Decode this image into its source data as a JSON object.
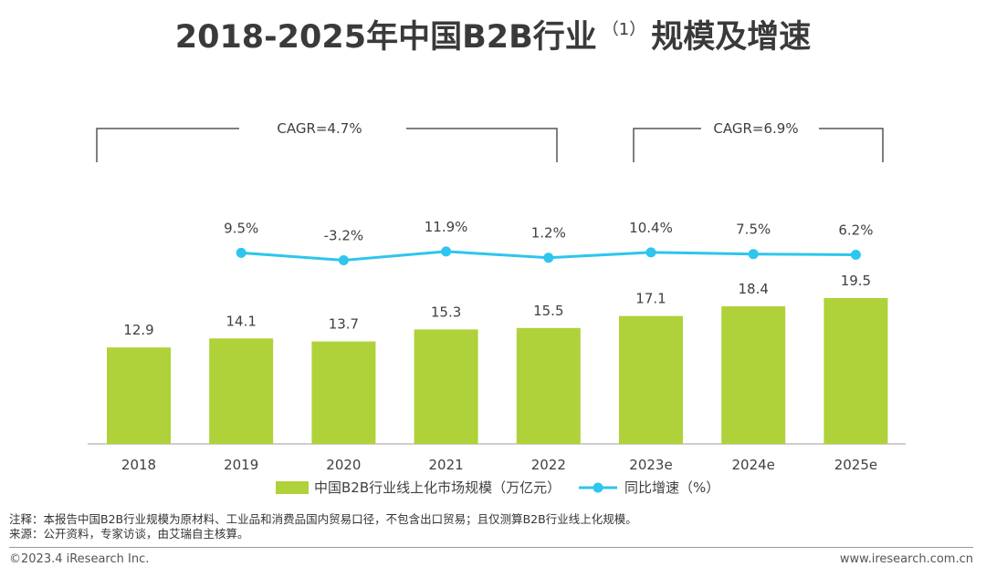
{
  "title": {
    "main": "2018-2025年中国B2B行业",
    "footnote_mark": "（1）",
    "suffix": "规模及增速"
  },
  "chart_data": {
    "type": "bar",
    "categories": [
      "2018",
      "2019",
      "2020",
      "2021",
      "2022",
      "2023e",
      "2024e",
      "2025e"
    ],
    "series": [
      {
        "name": "中国B2B行业线上化市场规模（万亿元）",
        "kind": "bar",
        "values": [
          12.9,
          14.1,
          13.7,
          15.3,
          15.5,
          17.1,
          18.4,
          19.5
        ],
        "labels": [
          "12.9",
          "14.1",
          "13.7",
          "15.3",
          "15.5",
          "17.1",
          "18.4",
          "19.5"
        ],
        "color": "#afd13a"
      },
      {
        "name": "同比增速（%）",
        "kind": "line",
        "values": [
          null,
          9.5,
          -3.2,
          11.9,
          1.2,
          10.4,
          7.5,
          6.2
        ],
        "labels": [
          "",
          "9.5%",
          "-3.2%",
          "11.9%",
          "1.2%",
          "10.4%",
          "7.5%",
          "6.2%"
        ],
        "color": "#2ec5ee"
      }
    ],
    "ylim": [
      0,
      25
    ],
    "annotations": [
      {
        "text": "CAGR=4.7%",
        "from": "2018",
        "to": "2022"
      },
      {
        "text": "CAGR=6.9%",
        "from": "2023e",
        "to": "2025e"
      }
    ],
    "legend_position": "bottom"
  },
  "notes": {
    "note": "注释：本报告中国B2B行业规模为原材料、工业品和消费品国内贸易口径，不包含出口贸易；且仅测算B2B行业线上化规模。",
    "source": "来源：公开资料，专家访谈，由艾瑞自主核算。"
  },
  "footer": {
    "copyright": "©2023.4 iResearch Inc.",
    "website": "www.iresearch.com.cn"
  }
}
